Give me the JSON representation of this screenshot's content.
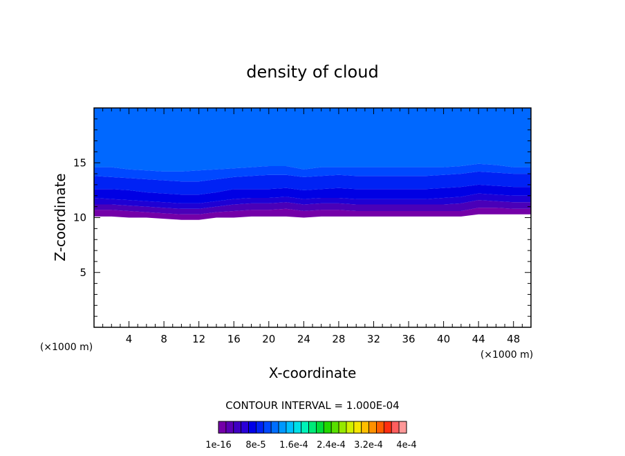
{
  "chart_data": {
    "type": "heatmap",
    "title": "density of cloud",
    "xlabel": "X-coordinate",
    "ylabel": "Z-coordinate",
    "x_unit": "(×1000 m)",
    "y_unit": "(×1000 m)",
    "xlim": [
      0,
      50
    ],
    "ylim": [
      0,
      20
    ],
    "xticks": [
      4,
      8,
      12,
      16,
      20,
      24,
      28,
      32,
      36,
      40,
      44,
      48
    ],
    "yticks": [
      5,
      10,
      15
    ],
    "contour_interval_text": "CONTOUR INTERVAL = 1.000E-04",
    "colorbar_labels": [
      "1e-16",
      "8e-5",
      "1.6e-4",
      "2.4e-4",
      "3.2e-4",
      "4e-4"
    ],
    "colorbar_colors": [
      "#7400a8",
      "#5a00b5",
      "#3f00c2",
      "#2a00d8",
      "#0000e8",
      "#0022f4",
      "#0048ff",
      "#006eff",
      "#0098ff",
      "#00c0ff",
      "#00e0e8",
      "#00f2b8",
      "#00ea78",
      "#00dc3a",
      "#22d800",
      "#58e000",
      "#96e800",
      "#d2f000",
      "#f6e600",
      "#ffbe00",
      "#ff9000",
      "#ff5e00",
      "#ff2e10",
      "#ff5e5e",
      "#ff9898"
    ],
    "cloud_layers": {
      "x": [
        0,
        2,
        4,
        6,
        8,
        10,
        12,
        14,
        16,
        18,
        20,
        22,
        24,
        26,
        28,
        30,
        32,
        34,
        36,
        38,
        40,
        42,
        44,
        46,
        48,
        50
      ],
      "base": [
        10.1,
        10.1,
        10.0,
        10.0,
        9.9,
        9.8,
        9.8,
        10.0,
        10.0,
        10.1,
        10.1,
        10.1,
        10.0,
        10.1,
        10.1,
        10.1,
        10.1,
        10.1,
        10.1,
        10.1,
        10.1,
        10.1,
        10.3,
        10.3,
        10.3,
        10.3
      ],
      "levels": [
        {
          "color": "#7400a8",
          "top": [
            10.7,
            10.7,
            10.6,
            10.5,
            10.4,
            10.3,
            10.3,
            10.5,
            10.6,
            10.7,
            10.7,
            10.8,
            10.6,
            10.7,
            10.7,
            10.6,
            10.6,
            10.6,
            10.6,
            10.6,
            10.6,
            10.6,
            10.9,
            10.9,
            10.8,
            10.8
          ]
        },
        {
          "color": "#4a00b8",
          "top": [
            11.2,
            11.2,
            11.1,
            11.0,
            10.9,
            10.8,
            10.8,
            11.0,
            11.2,
            11.3,
            11.3,
            11.4,
            11.2,
            11.3,
            11.3,
            11.2,
            11.2,
            11.2,
            11.2,
            11.2,
            11.2,
            11.3,
            11.6,
            11.5,
            11.4,
            11.4
          ]
        },
        {
          "color": "#1e00d4",
          "top": [
            11.8,
            11.7,
            11.6,
            11.5,
            11.4,
            11.3,
            11.3,
            11.5,
            11.7,
            11.8,
            11.8,
            11.9,
            11.7,
            11.8,
            11.8,
            11.7,
            11.7,
            11.7,
            11.7,
            11.7,
            11.8,
            11.9,
            12.2,
            12.1,
            12.0,
            12.0
          ]
        },
        {
          "color": "#0000e4",
          "top": [
            12.6,
            12.6,
            12.5,
            12.3,
            12.2,
            12.1,
            12.1,
            12.3,
            12.6,
            12.6,
            12.6,
            12.7,
            12.5,
            12.6,
            12.7,
            12.6,
            12.6,
            12.6,
            12.6,
            12.6,
            12.7,
            12.8,
            13.0,
            12.9,
            12.8,
            12.8
          ]
        },
        {
          "color": "#0022f4",
          "top": [
            13.8,
            13.7,
            13.6,
            13.5,
            13.4,
            13.3,
            13.3,
            13.5,
            13.7,
            13.8,
            13.9,
            13.9,
            13.7,
            13.8,
            13.9,
            13.8,
            13.8,
            13.8,
            13.8,
            13.8,
            13.9,
            14.0,
            14.2,
            14.1,
            14.0,
            14.0
          ]
        },
        {
          "color": "#0048ff",
          "top": [
            14.6,
            14.6,
            14.4,
            14.3,
            14.2,
            14.2,
            14.3,
            14.4,
            14.5,
            14.6,
            14.7,
            14.7,
            14.4,
            14.6,
            14.6,
            14.6,
            14.6,
            14.6,
            14.6,
            14.6,
            14.6,
            14.7,
            14.9,
            14.8,
            14.6,
            14.6
          ]
        }
      ],
      "upper_color": "#0068ff"
    }
  }
}
